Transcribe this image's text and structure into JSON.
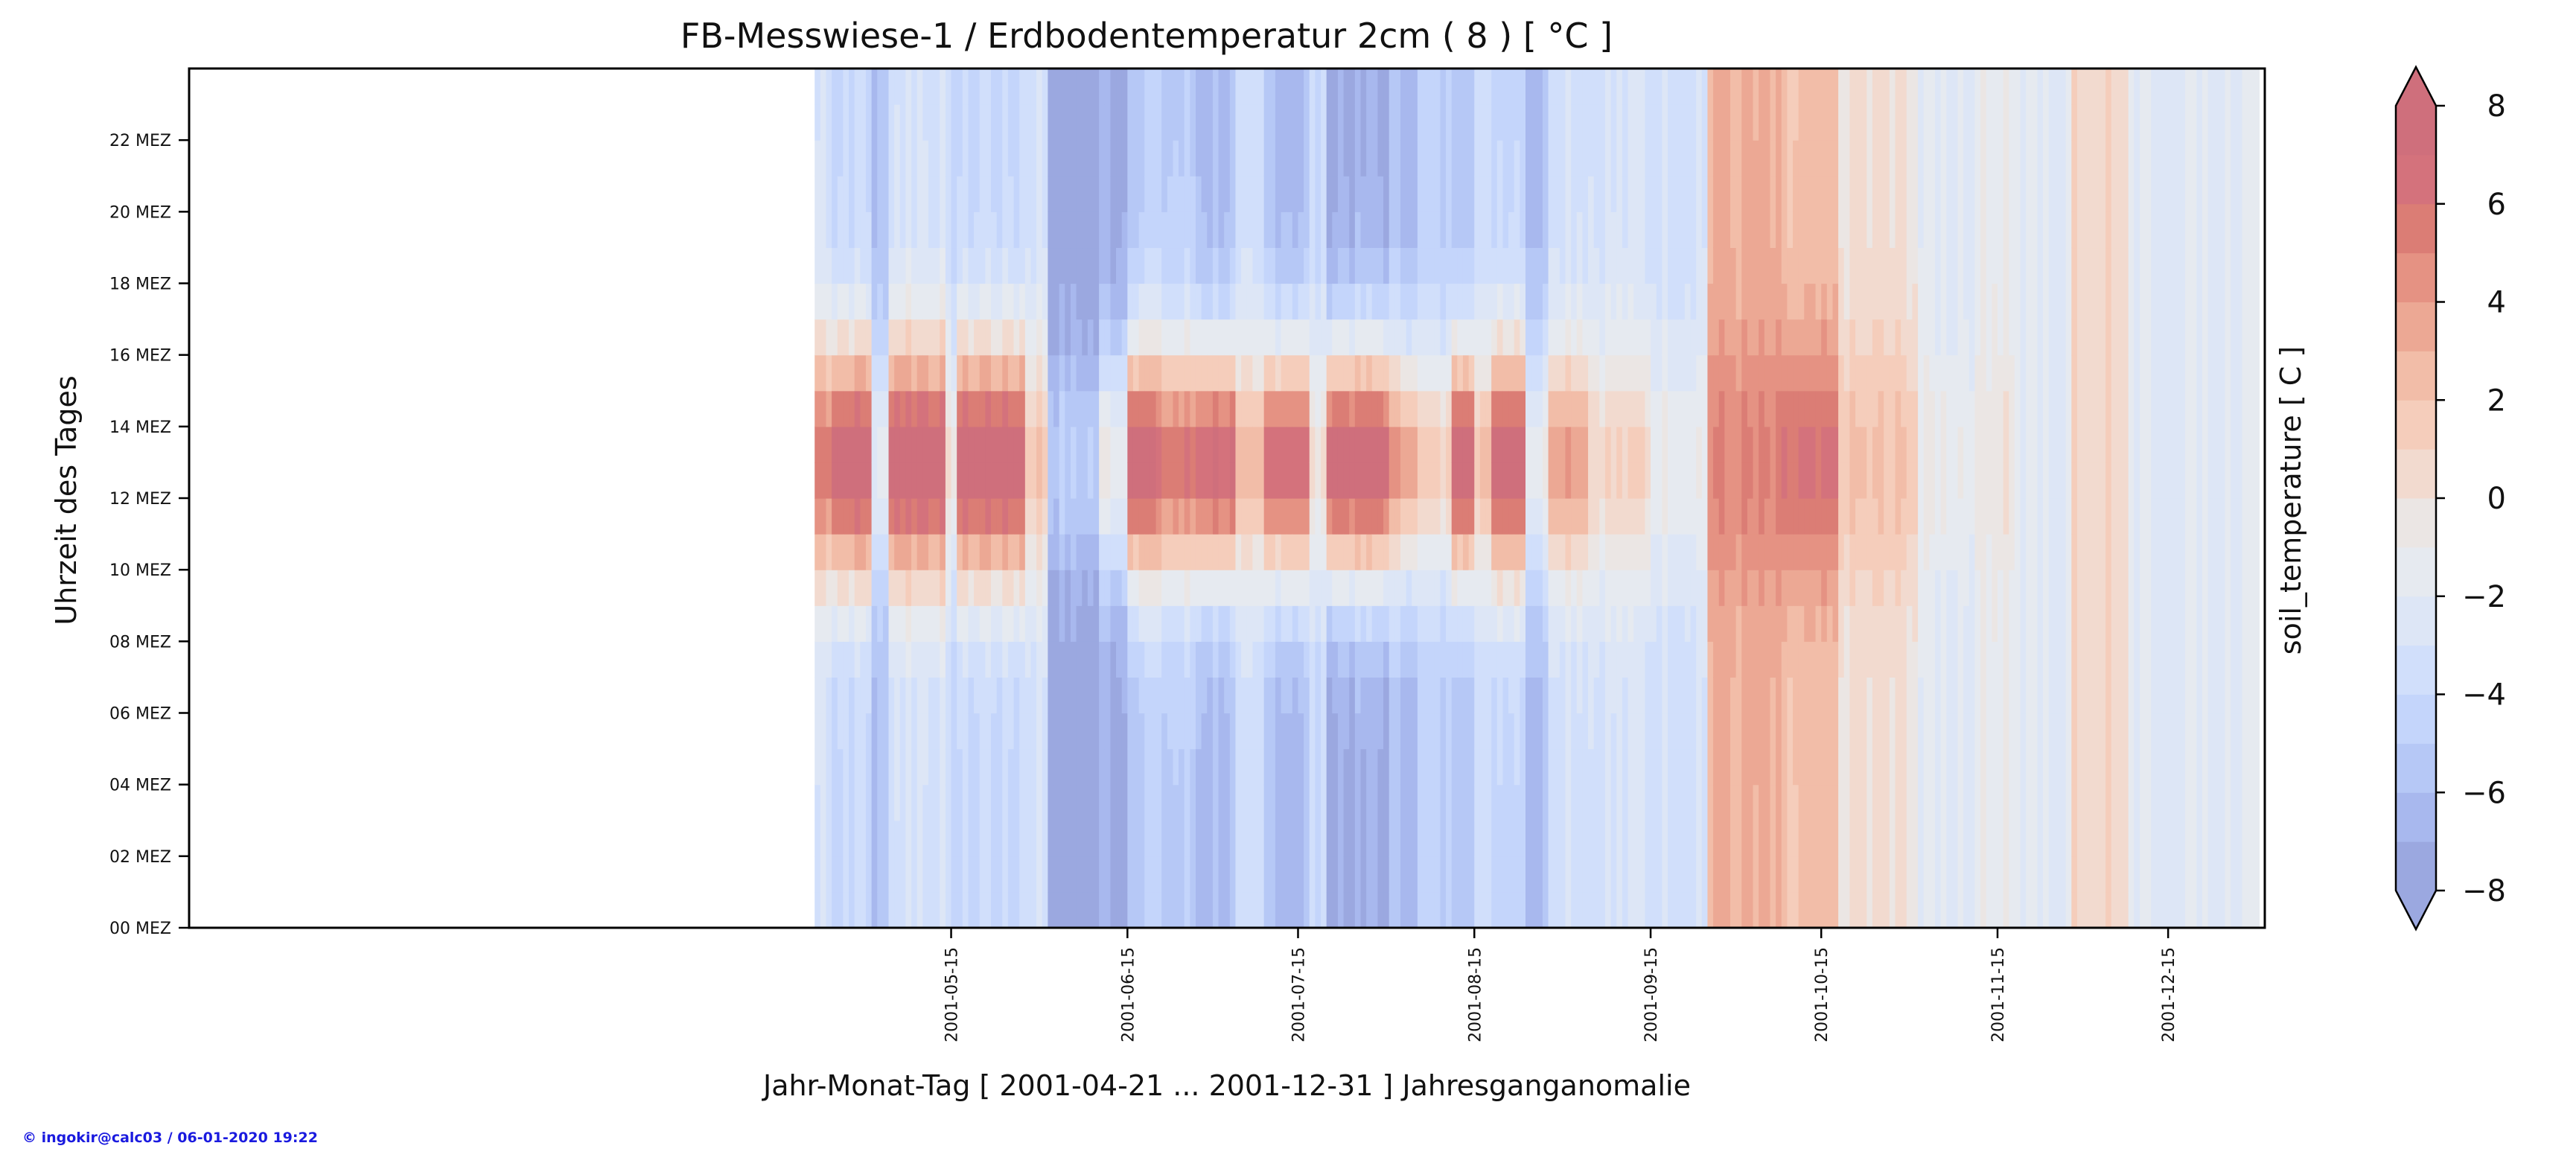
{
  "chart_data": {
    "type": "heatmap",
    "title": "FB-Messwiese-1 / Erdbodentemperatur 2cm ( 8 ) [ °C ]",
    "xlabel": "Jahr-Monat-Tag [ 2001-04-21 ... 2001-12-31 ] Jahresganganomalie",
    "ylabel": "Uhrzeit des Tages",
    "x_range": [
      "2001-01-01",
      "2001-12-31"
    ],
    "data_start": "2001-04-21",
    "data_end": "2001-12-31",
    "x_ticks": [
      "2001-05-15",
      "2001-06-15",
      "2001-07-15",
      "2001-08-15",
      "2001-09-15",
      "2001-10-15",
      "2001-11-15",
      "2001-12-15"
    ],
    "y_range": [
      0,
      24
    ],
    "y_ticks": [
      0,
      2,
      4,
      6,
      8,
      10,
      12,
      14,
      16,
      18,
      20,
      22
    ],
    "y_tick_labels": [
      "00 MEZ",
      "02 MEZ",
      "04 MEZ",
      "06 MEZ",
      "08 MEZ",
      "10 MEZ",
      "12 MEZ",
      "14 MEZ",
      "16 MEZ",
      "18 MEZ",
      "20 MEZ",
      "22 MEZ"
    ],
    "colorbar": {
      "label": "soil_temperature [ C ]",
      "vmin": -8,
      "vmax": 8,
      "ticks": [
        -8,
        -6,
        -4,
        -2,
        0,
        2,
        4,
        6,
        8
      ],
      "tick_labels": [
        "−8",
        "−6",
        "−4",
        "−2",
        "0",
        "2",
        "4",
        "6",
        "8"
      ],
      "extend": "both",
      "levels": [
        -8,
        -7,
        -6,
        -5,
        -4,
        -3,
        -2,
        -1,
        0,
        1,
        2,
        3,
        4,
        5,
        6,
        7,
        8
      ],
      "colors": [
        "#9ba8e0",
        "#a8b8ee",
        "#b6c8f6",
        "#c4d5fb",
        "#d1dffb",
        "#dde6f6",
        "#e6eaf0",
        "#ebe6e4",
        "#f2dacf",
        "#f5cdbb",
        "#f2bda8",
        "#eca894",
        "#e59283",
        "#db7d75",
        "#d4727c",
        "#cf6f7c"
      ]
    },
    "day_series": [
      {
        "start": "2001-04-21",
        "end": "2001-04-24",
        "night": -3,
        "day": 6
      },
      {
        "start": "2001-04-24",
        "end": "2001-05-01",
        "night": -4,
        "day": 8
      },
      {
        "start": "2001-05-01",
        "end": "2001-05-04",
        "night": -6,
        "day": -2
      },
      {
        "start": "2001-05-04",
        "end": "2001-05-14",
        "night": -3,
        "day": 8
      },
      {
        "start": "2001-05-14",
        "end": "2001-05-16",
        "night": -4,
        "day": 0
      },
      {
        "start": "2001-05-16",
        "end": "2001-05-28",
        "night": -4,
        "day": 8
      },
      {
        "start": "2001-05-28",
        "end": "2001-06-01",
        "night": -3,
        "day": 2
      },
      {
        "start": "2001-06-01",
        "end": "2001-06-10",
        "night": -8,
        "day": -5
      },
      {
        "start": "2001-06-10",
        "end": "2001-06-15",
        "night": -7,
        "day": -1
      },
      {
        "start": "2001-06-15",
        "end": "2001-06-20",
        "night": -5,
        "day": 8
      },
      {
        "start": "2001-06-20",
        "end": "2001-06-27",
        "night": -5,
        "day": 6
      },
      {
        "start": "2001-06-27",
        "end": "2001-07-04",
        "night": -6,
        "day": 7
      },
      {
        "start": "2001-07-04",
        "end": "2001-07-09",
        "night": -4,
        "day": 2
      },
      {
        "start": "2001-07-09",
        "end": "2001-07-17",
        "night": -6,
        "day": 7
      },
      {
        "start": "2001-07-17",
        "end": "2001-07-20",
        "night": -4,
        "day": 0
      },
      {
        "start": "2001-07-20",
        "end": "2001-07-31",
        "night": -7,
        "day": 8
      },
      {
        "start": "2001-07-31",
        "end": "2001-08-05",
        "night": -6,
        "day": 4
      },
      {
        "start": "2001-08-05",
        "end": "2001-08-11",
        "night": -5,
        "day": 1
      },
      {
        "start": "2001-08-11",
        "end": "2001-08-15",
        "night": -5,
        "day": 8
      },
      {
        "start": "2001-08-15",
        "end": "2001-08-18",
        "night": -4,
        "day": 2
      },
      {
        "start": "2001-08-18",
        "end": "2001-08-24",
        "night": -4,
        "day": 8
      },
      {
        "start": "2001-08-24",
        "end": "2001-08-28",
        "night": -6,
        "day": -1
      },
      {
        "start": "2001-08-28",
        "end": "2001-09-04",
        "night": -3,
        "day": 4
      },
      {
        "start": "2001-09-04",
        "end": "2001-09-15",
        "night": -3,
        "day": 1
      },
      {
        "start": "2001-09-15",
        "end": "2001-09-25",
        "night": -3,
        "day": -1
      },
      {
        "start": "2001-09-25",
        "end": "2001-10-08",
        "night": 3,
        "day": 5
      },
      {
        "start": "2001-10-08",
        "end": "2001-10-18",
        "night": 2,
        "day": 6
      },
      {
        "start": "2001-10-18",
        "end": "2001-11-01",
        "night": 0,
        "day": 2
      },
      {
        "start": "2001-11-01",
        "end": "2001-11-12",
        "night": -2,
        "day": -1
      },
      {
        "start": "2001-11-12",
        "end": "2001-11-18",
        "night": -1,
        "day": 0
      },
      {
        "start": "2001-11-18",
        "end": "2001-11-28",
        "night": -2,
        "day": -2
      },
      {
        "start": "2001-11-28",
        "end": "2001-12-08",
        "night": 1,
        "day": 1
      },
      {
        "start": "2001-12-08",
        "end": "2001-12-20",
        "night": -2,
        "day": -2
      },
      {
        "start": "2001-12-20",
        "end": "2001-12-31",
        "night": -2,
        "day": -2
      }
    ],
    "footer": "© ingokir@calc03 / 06-01-2020 19:22"
  },
  "colors": {
    "footer": "#1a1adf",
    "axis": "#000000",
    "text": "#111111"
  }
}
